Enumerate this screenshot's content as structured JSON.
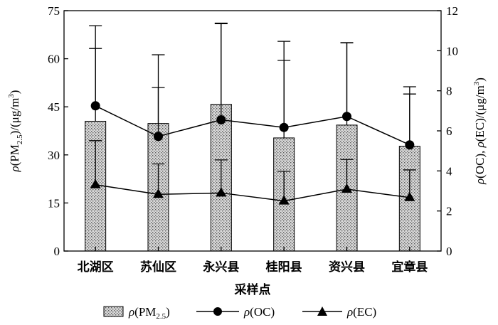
{
  "chart_data": {
    "type": "bar",
    "categories": [
      "北湖区",
      "苏仙区",
      "永兴县",
      "桂阳县",
      "资兴县",
      "宜章县"
    ],
    "xlabel": "采样点",
    "ylabel_left": "ρ(PM2.5)/(μg/m3)",
    "ylabel_right": "ρ(OC), ρ(EC)/(μg/m3)",
    "ylim_left": [
      0,
      75
    ],
    "yticks_left": [
      0,
      15,
      30,
      45,
      60,
      75
    ],
    "ylim_right": [
      0,
      12
    ],
    "yticks_right": [
      0,
      2,
      4,
      6,
      8,
      10,
      12
    ],
    "series": [
      {
        "name": "ρ(PM2.5)",
        "type": "bar",
        "axis": "left",
        "values": [
          40.5,
          39.8,
          45.8,
          35.3,
          39.3,
          32.7
        ],
        "error_plus": [
          22.7,
          11.2,
          25.3,
          24.2,
          25.7,
          16.3
        ]
      },
      {
        "name": "ρ(OC)",
        "type": "line",
        "axis": "right",
        "marker": "circle",
        "values": [
          7.25,
          5.72,
          6.55,
          6.17,
          6.72,
          5.3
        ],
        "error_plus": [
          4.0,
          4.08,
          4.8,
          4.3,
          3.68,
          2.9
        ]
      },
      {
        "name": "ρ(EC)",
        "type": "line",
        "axis": "right",
        "marker": "triangle",
        "values": [
          3.31,
          2.83,
          2.9,
          2.5,
          3.09,
          2.67
        ],
        "error_plus": [
          2.2,
          1.52,
          1.65,
          1.48,
          1.48,
          1.38
        ]
      }
    ],
    "legend_position": "bottom",
    "grid": false
  },
  "legend": {
    "pm25_prefix": "ρ(PM",
    "pm25_sub": "2.5",
    "pm25_suffix": ")",
    "oc_label": "ρ(OC)",
    "ec_label": "ρ(EC)"
  }
}
